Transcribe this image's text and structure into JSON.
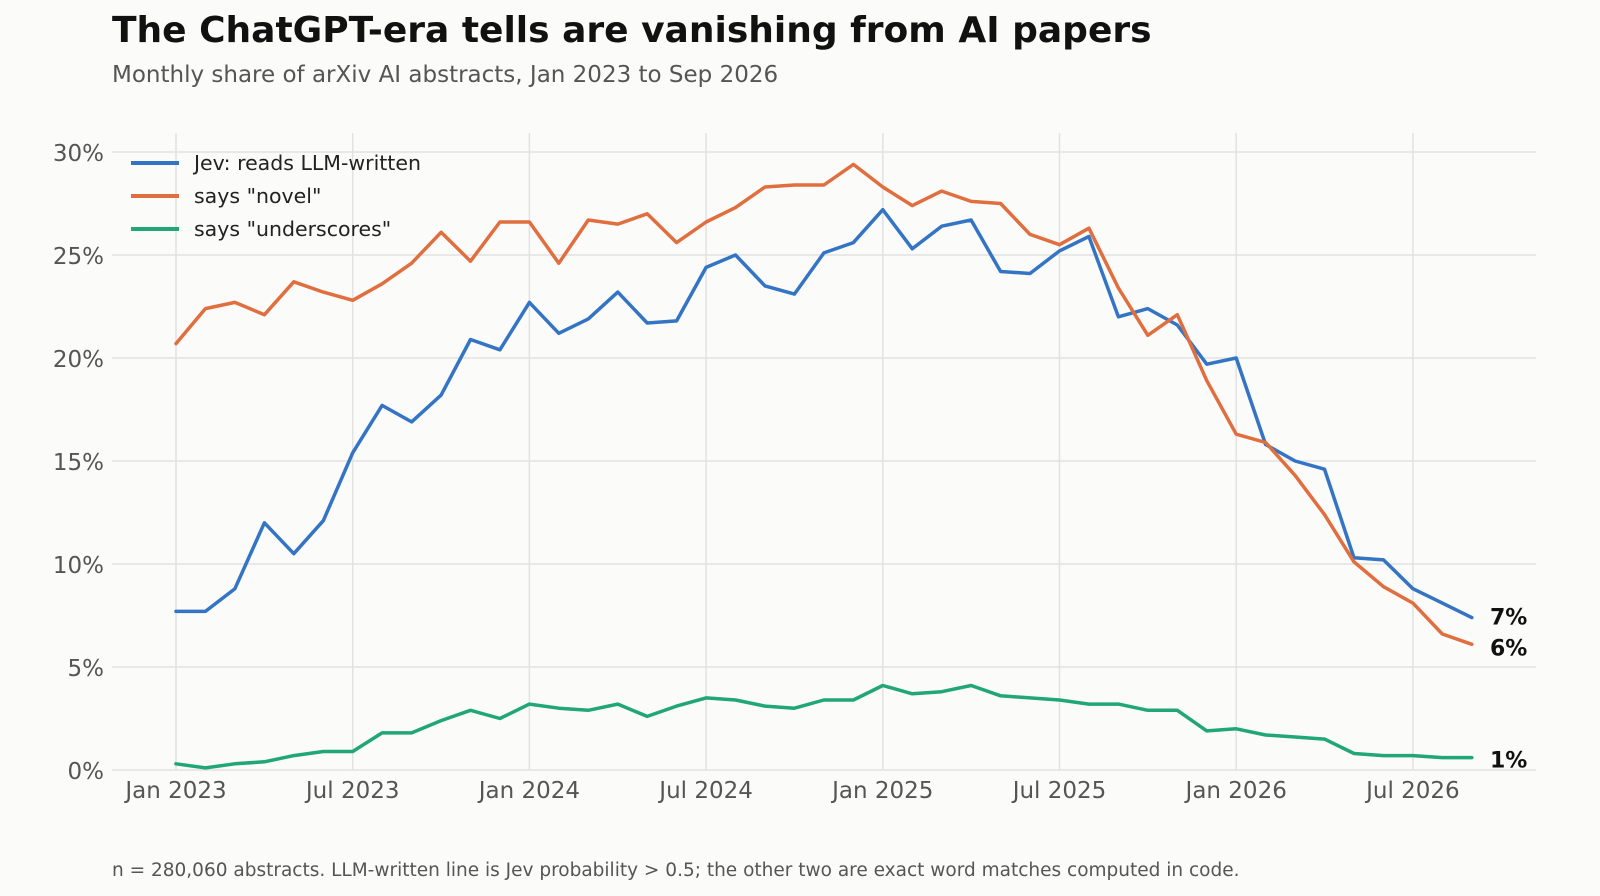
{
  "header": {
    "title": "The ChatGPT-era tells are vanishing from AI papers",
    "subtitle": "Monthly share of arXiv AI abstracts, Jan 2023 to Sep 2026"
  },
  "footnote": "n = 280,060 abstracts. LLM-written line is Jev probability > 0.5; the other two are exact word matches computed in code.",
  "chart_data": {
    "type": "line",
    "title": "The ChatGPT-era tells are vanishing from AI papers",
    "subtitle": "Monthly share of arXiv AI abstracts, Jan 2023 to Sep 2026",
    "x_start": "2023-01",
    "x_ticks": [
      {
        "month": "2023-01",
        "label": "Jan 2023"
      },
      {
        "month": "2023-07",
        "label": "Jul 2023"
      },
      {
        "month": "2024-01",
        "label": "Jan 2024"
      },
      {
        "month": "2024-07",
        "label": "Jul 2024"
      },
      {
        "month": "2025-01",
        "label": "Jan 2025"
      },
      {
        "month": "2025-07",
        "label": "Jul 2025"
      },
      {
        "month": "2026-01",
        "label": "Jan 2026"
      },
      {
        "month": "2026-07",
        "label": "Jul 2026"
      }
    ],
    "ylim": [
      0,
      30
    ],
    "y_ticks": [
      {
        "value": 0,
        "label": "0%"
      },
      {
        "value": 5,
        "label": "5%"
      },
      {
        "value": 10,
        "label": "10%"
      },
      {
        "value": 15,
        "label": "15%"
      },
      {
        "value": 20,
        "label": "20%"
      },
      {
        "value": 25,
        "label": "25%"
      },
      {
        "value": 30,
        "label": "30%"
      }
    ],
    "grid": true,
    "legend_position": "top-left",
    "series": [
      {
        "name": "Jev: reads LLM-written",
        "color": "#3474c4",
        "end_label": "7%",
        "values": [
          7.7,
          7.7,
          8.8,
          12.0,
          10.5,
          12.1,
          15.4,
          17.7,
          16.9,
          18.2,
          20.9,
          20.4,
          22.7,
          21.2,
          21.9,
          23.2,
          21.7,
          21.8,
          24.4,
          25.0,
          23.5,
          23.1,
          25.1,
          25.6,
          27.2,
          25.3,
          26.4,
          26.7,
          24.2,
          24.1,
          25.2,
          25.9,
          22.0,
          22.4,
          21.6,
          19.7,
          20.0,
          15.8,
          15.0,
          14.6,
          10.3,
          10.2,
          8.8,
          8.1,
          7.4
        ]
      },
      {
        "name": "says \"novel\"",
        "color": "#e06e3e",
        "end_label": "6%",
        "values": [
          20.7,
          22.4,
          22.7,
          22.1,
          23.7,
          23.2,
          22.8,
          23.6,
          24.6,
          26.1,
          24.7,
          26.6,
          26.6,
          24.6,
          26.7,
          26.5,
          27.0,
          25.6,
          26.6,
          27.3,
          28.3,
          28.4,
          28.4,
          29.4,
          28.3,
          27.4,
          28.1,
          27.6,
          27.5,
          26.0,
          25.5,
          26.3,
          23.4,
          21.1,
          22.1,
          18.9,
          16.3,
          15.9,
          14.3,
          12.4,
          10.1,
          8.9,
          8.1,
          6.6,
          6.1
        ]
      },
      {
        "name": "says \"underscores\"",
        "color": "#21a67a",
        "end_label": "1%",
        "values": [
          0.3,
          0.1,
          0.3,
          0.4,
          0.7,
          0.9,
          0.9,
          1.8,
          1.8,
          2.4,
          2.9,
          2.5,
          3.2,
          3.0,
          2.9,
          3.2,
          2.6,
          3.1,
          3.5,
          3.4,
          3.1,
          3.0,
          3.4,
          3.4,
          4.1,
          3.7,
          3.8,
          4.1,
          3.6,
          3.5,
          3.4,
          3.2,
          3.2,
          2.9,
          2.9,
          1.9,
          2.0,
          1.7,
          1.6,
          1.5,
          0.8,
          0.7,
          0.7,
          0.6,
          0.6
        ]
      }
    ]
  }
}
